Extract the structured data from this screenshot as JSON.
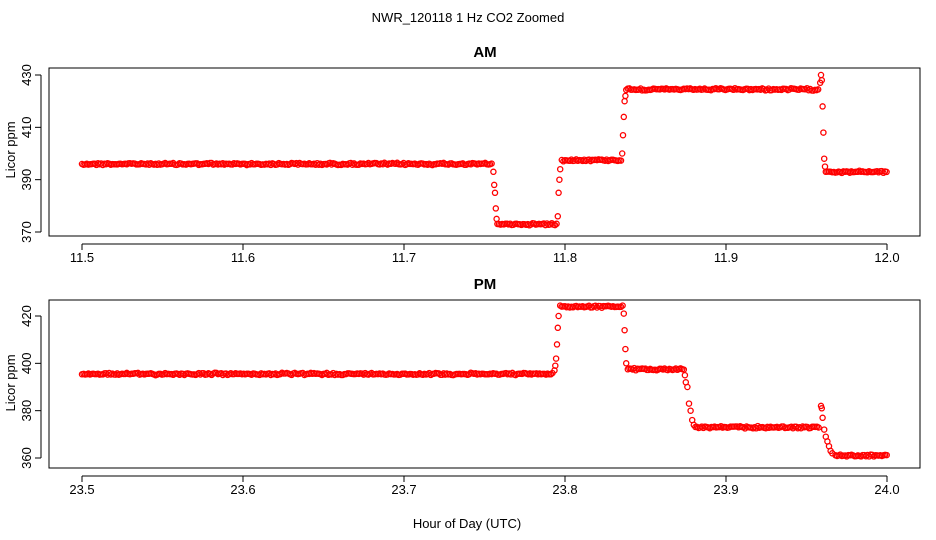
{
  "figure": {
    "title": "NWR_120118  1 Hz CO2 Zoomed",
    "xlabel": "Hour of Day (UTC)"
  },
  "chart_data": [
    {
      "type": "scatter",
      "title": "AM",
      "ylabel": "Licor ppm",
      "xlim": [
        11.5,
        12.0
      ],
      "ylim": [
        370,
        430
      ],
      "xticks": [
        "11.5",
        "11.6",
        "11.7",
        "11.8",
        "11.9",
        "12.0"
      ],
      "yticks": [
        "370",
        "390",
        "410",
        "430"
      ],
      "marker_color": "#ff0000",
      "segments": [
        {
          "x_start": 11.5,
          "x_end": 11.755,
          "y": 396
        },
        {
          "x_start": 11.758,
          "x_end": 11.795,
          "y": 373
        },
        {
          "x_start": 11.798,
          "x_end": 11.835,
          "y": 397.5
        },
        {
          "x_start": 11.838,
          "x_end": 11.958,
          "y": 424.5
        },
        {
          "x_start": 11.963,
          "x_end": 12.0,
          "y": 393
        }
      ],
      "transitions": [
        {
          "x": 11.7555,
          "y": 393
        },
        {
          "x": 11.756,
          "y": 388
        },
        {
          "x": 11.7565,
          "y": 385
        },
        {
          "x": 11.757,
          "y": 379
        },
        {
          "x": 11.7575,
          "y": 375
        },
        {
          "x": 11.7955,
          "y": 376
        },
        {
          "x": 11.796,
          "y": 385
        },
        {
          "x": 11.7965,
          "y": 390
        },
        {
          "x": 11.797,
          "y": 394
        },
        {
          "x": 11.8355,
          "y": 400
        },
        {
          "x": 11.836,
          "y": 407
        },
        {
          "x": 11.8365,
          "y": 414
        },
        {
          "x": 11.837,
          "y": 420
        },
        {
          "x": 11.8375,
          "y": 422
        },
        {
          "x": 11.9585,
          "y": 427
        },
        {
          "x": 11.959,
          "y": 430
        },
        {
          "x": 11.9595,
          "y": 428
        },
        {
          "x": 11.96,
          "y": 418
        },
        {
          "x": 11.9605,
          "y": 408
        },
        {
          "x": 11.961,
          "y": 398
        },
        {
          "x": 11.9615,
          "y": 395
        },
        {
          "x": 11.962,
          "y": 393
        }
      ]
    },
    {
      "type": "scatter",
      "title": "PM",
      "ylabel": "Licor ppm",
      "xlim": [
        23.5,
        24.0
      ],
      "ylim": [
        360,
        425
      ],
      "xticks": [
        "23.5",
        "23.6",
        "23.7",
        "23.8",
        "23.9",
        "24.0"
      ],
      "yticks": [
        "360",
        "380",
        "400",
        "420"
      ],
      "marker_color": "#ff0000",
      "segments": [
        {
          "x_start": 23.5,
          "x_end": 23.793,
          "y": 395.5
        },
        {
          "x_start": 23.797,
          "x_end": 23.836,
          "y": 424
        },
        {
          "x_start": 23.839,
          "x_end": 23.874,
          "y": 397.5
        },
        {
          "x_start": 23.881,
          "x_end": 23.958,
          "y": 373
        },
        {
          "x_start": 23.968,
          "x_end": 24.0,
          "y": 361
        }
      ],
      "transitions": [
        {
          "x": 23.7935,
          "y": 397
        },
        {
          "x": 23.794,
          "y": 399
        },
        {
          "x": 23.7945,
          "y": 402
        },
        {
          "x": 23.795,
          "y": 408
        },
        {
          "x": 23.7955,
          "y": 415
        },
        {
          "x": 23.796,
          "y": 420
        },
        {
          "x": 23.8365,
          "y": 421
        },
        {
          "x": 23.837,
          "y": 414
        },
        {
          "x": 23.8375,
          "y": 406
        },
        {
          "x": 23.838,
          "y": 400
        },
        {
          "x": 23.8745,
          "y": 395
        },
        {
          "x": 23.875,
          "y": 392
        },
        {
          "x": 23.876,
          "y": 390
        },
        {
          "x": 23.877,
          "y": 383
        },
        {
          "x": 23.878,
          "y": 380
        },
        {
          "x": 23.879,
          "y": 376
        },
        {
          "x": 23.88,
          "y": 374
        },
        {
          "x": 23.959,
          "y": 382
        },
        {
          "x": 23.9595,
          "y": 381
        },
        {
          "x": 23.96,
          "y": 377
        },
        {
          "x": 23.961,
          "y": 372
        },
        {
          "x": 23.962,
          "y": 369
        },
        {
          "x": 23.963,
          "y": 367
        },
        {
          "x": 23.964,
          "y": 365
        },
        {
          "x": 23.965,
          "y": 363
        },
        {
          "x": 23.966,
          "y": 362
        }
      ]
    }
  ]
}
